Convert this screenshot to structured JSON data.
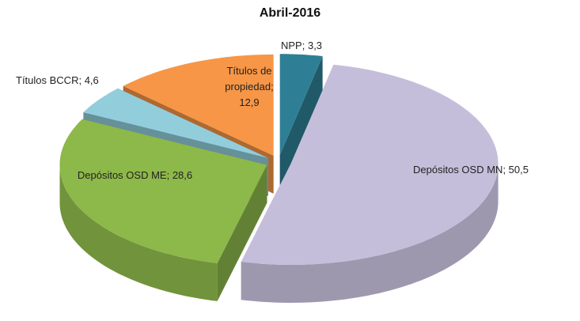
{
  "chart_data": {
    "type": "pie3d",
    "title": "Abril-2016",
    "categories": [
      "NPP",
      "Depósitos OSD MN",
      "Depósitos OSD ME",
      "Títulos BCCR",
      "Títulos de propiedad"
    ],
    "values": [
      3.3,
      50.5,
      28.6,
      4.6,
      12.9
    ],
    "value_labels": [
      "3,3",
      "50,5",
      "28,6",
      "4,6",
      "12,9"
    ],
    "separator": "; ",
    "colors": [
      "#2e7f95",
      "#c5bedb",
      "#8db84a",
      "#92cddc",
      "#f79646"
    ]
  }
}
